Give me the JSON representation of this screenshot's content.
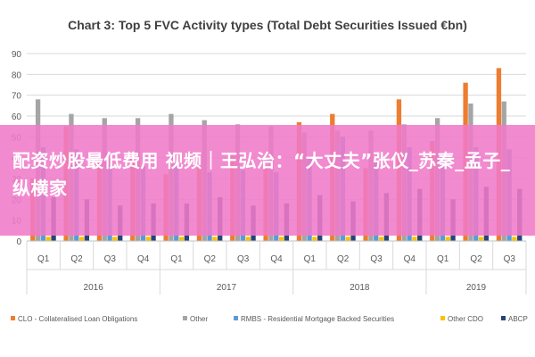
{
  "chart_data": {
    "type": "bar",
    "title": "Chart 3: Top 5 FVC Activity types (Total Debt Securities Issued €bn)",
    "categories": [
      "Q1",
      "Q2",
      "Q3",
      "Q4",
      "Q1",
      "Q2",
      "Q3",
      "Q4",
      "Q1",
      "Q2",
      "Q3",
      "Q4",
      "Q1",
      "Q2",
      "Q3"
    ],
    "groups": [
      {
        "label": "2016",
        "span": 4
      },
      {
        "label": "2017",
        "span": 4
      },
      {
        "label": "2018",
        "span": 4
      },
      {
        "label": "2019",
        "span": 3
      }
    ],
    "ylim": [
      0,
      90
    ],
    "yticks": [
      0,
      10,
      20,
      30,
      40,
      50,
      60,
      70,
      80,
      90
    ],
    "grid": true,
    "legend_position": "bottom",
    "series": [
      {
        "name": "CLO - Collateralised Loan Obligations",
        "color": "#ed7d31",
        "values": [
          30,
          55,
          38,
          40,
          32,
          36,
          41,
          36,
          57,
          61,
          35,
          68,
          48,
          76,
          83
        ]
      },
      {
        "name": "Other",
        "color": "#a5a5a5",
        "values": [
          68,
          61,
          59,
          59,
          61,
          58,
          56,
          55,
          52,
          53,
          53,
          56,
          59,
          66,
          67
        ]
      },
      {
        "name": "RMBS - Residential Mortgage Backed Securities",
        "color": "#5b9bd5",
        "values": [
          45,
          44,
          40,
          36,
          38,
          33,
          34,
          33,
          40,
          50,
          38,
          45,
          42,
          45,
          44
        ]
      },
      {
        "name": "Other CDO",
        "color": "#ffc000",
        "values": [
          2,
          2,
          2,
          2,
          2,
          2,
          2,
          2,
          2,
          2,
          2,
          2,
          2,
          2,
          2
        ]
      },
      {
        "name": "ABCP",
        "color": "#264478",
        "values": [
          21,
          20,
          17,
          18,
          18,
          21,
          17,
          18,
          22,
          19,
          23,
          25,
          20,
          26,
          25
        ]
      }
    ]
  },
  "banner": {
    "text": "配资炒股最低费用 视频｜王弘治：“大丈夫”张仪_苏秦_孟子_纵横家"
  }
}
